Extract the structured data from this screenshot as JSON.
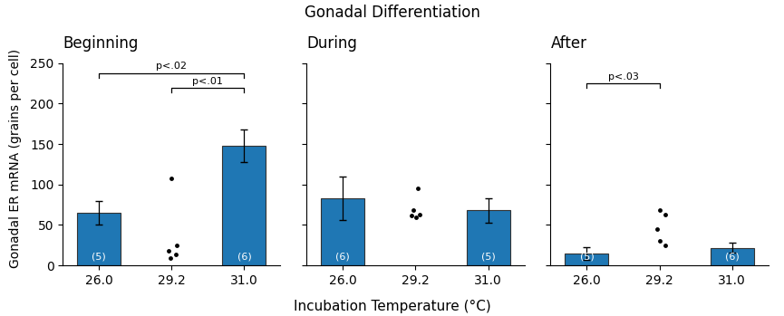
{
  "chart_data": {
    "type": "bar",
    "title": "Gonadal Differentiation",
    "xlabel": "Incubation Temperature (°C)",
    "ylabel": "Gonadal ER mRNA (grains per cell)",
    "categories": [
      "26.0",
      "29.2",
      "31.0"
    ],
    "ylim": [
      0,
      250
    ],
    "yticks": [
      0,
      50,
      100,
      150,
      200,
      250
    ],
    "color": "#1f77b4",
    "panels": [
      {
        "subtitle": "Beginning",
        "values": [
          65,
          null,
          148
        ],
        "errors": [
          15,
          null,
          20
        ],
        "n_labels": [
          "(5)",
          null,
          "(6)"
        ],
        "points": {
          "type": "scatter",
          "color": "#000000",
          "marker": "o",
          "x": [
            1,
            1.07,
            0.96,
            1.06,
            0.98
          ],
          "y": [
            108,
            25,
            18,
            14,
            9
          ]
        },
        "significance": [
          {
            "x1": 0,
            "x2": 2,
            "y": 238,
            "label": "p<.02"
          },
          {
            "x1": 1,
            "x2": 2,
            "y": 220,
            "label": "p<.01"
          }
        ]
      },
      {
        "subtitle": "During",
        "values": [
          83,
          null,
          68
        ],
        "errors": [
          27,
          null,
          15
        ],
        "n_labels": [
          "(6)",
          null,
          "(5)"
        ],
        "points": {
          "type": "scatter",
          "color": "#000000",
          "marker": "o",
          "x": [
            1.03,
            0.97,
            1.06,
            0.94,
            1.01
          ],
          "y": [
            95,
            68,
            63,
            62,
            59
          ]
        },
        "significance": []
      },
      {
        "subtitle": "After",
        "values": [
          15,
          null,
          22
        ],
        "errors": [
          8,
          null,
          6
        ],
        "n_labels": [
          "(5)",
          null,
          "(6)"
        ],
        "points": {
          "type": "scatter",
          "color": "#000000",
          "marker": "o",
          "x": [
            1.0,
            1.08,
            0.97,
            1.0,
            1.08
          ],
          "y": [
            68,
            63,
            45,
            30,
            25
          ]
        },
        "significance": [
          {
            "x1": 0,
            "x2": 1,
            "y": 225,
            "label": "p<.03"
          }
        ]
      }
    ]
  }
}
